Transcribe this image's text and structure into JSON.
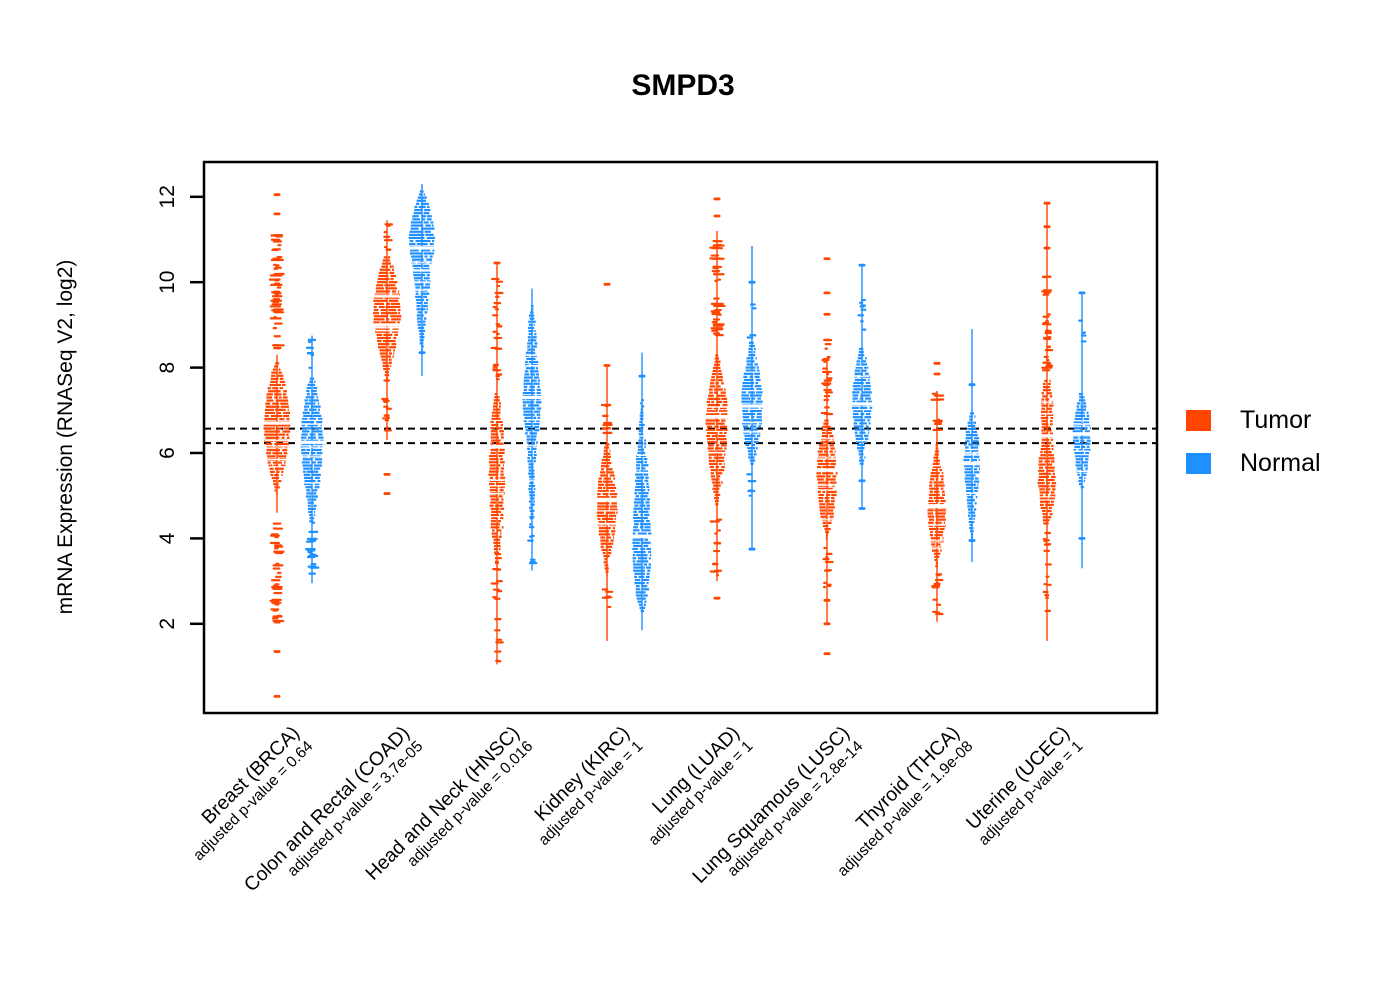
{
  "title": "SMPD3",
  "y_axis": {
    "label": "mRNA Expression (RNASeq V2, log2)",
    "ticks": [
      2,
      4,
      6,
      8,
      10,
      12
    ],
    "range_shown": [
      -0.1,
      12.8
    ]
  },
  "legend": {
    "items": [
      {
        "label": "Tumor",
        "color": "#FF4500"
      },
      {
        "label": "Normal",
        "color": "#1E90FF"
      }
    ]
  },
  "reference_lines": {
    "style": "dashed-black",
    "values": [
      6.57,
      6.23
    ]
  },
  "chart_data": {
    "type": "violin-strip",
    "ylabel": "mRNA Expression (RNASeq V2, log2)",
    "ylim": [
      -0.1,
      12.8
    ],
    "series_colors": {
      "tumor": "#FF4500",
      "normal": "#1E90FF"
    },
    "groups": [
      {
        "label": "Breast (BRCA)",
        "pvalue_label": "adjusted p-value = 0.64",
        "tumor": {
          "median": 6.7,
          "spine": [
            4.6,
            8.3
          ],
          "shape": [
            [
              5.05,
              1
            ],
            [
              5.5,
              6
            ],
            [
              5.9,
              10
            ],
            [
              6.3,
              12
            ],
            [
              6.7,
              13
            ],
            [
              7.1,
              12
            ],
            [
              7.5,
              9
            ],
            [
              7.9,
              5
            ],
            [
              8.15,
              1
            ]
          ],
          "above": {
            "range": [
              8.3,
              11.2
            ],
            "n": 55,
            "w": 5
          },
          "below": {
            "range": [
              2.0,
              4.45
            ],
            "n": 38,
            "w": 4.5
          },
          "dots_above": [
            11.6,
            12.05
          ],
          "dots_below": [
            1.35,
            0.3
          ]
        },
        "normal": {
          "median": 6.25,
          "spine": [
            2.95,
            8.75
          ],
          "shape": [
            [
              4.4,
              2
            ],
            [
              4.9,
              5
            ],
            [
              5.4,
              8
            ],
            [
              5.9,
              10
            ],
            [
              6.3,
              11
            ],
            [
              6.7,
              10
            ],
            [
              7.1,
              8
            ],
            [
              7.5,
              5
            ],
            [
              7.8,
              2
            ]
          ],
          "above": {
            "range": [
              7.85,
              8.7
            ],
            "n": 8,
            "w": 3
          },
          "below": {
            "range": [
              3.0,
              4.4
            ],
            "n": 18,
            "w": 4
          },
          "dots_above": [],
          "dots_below": []
        }
      },
      {
        "label": "Colon and Rectal (COAD)",
        "pvalue_label": "adjusted p-value = 3.7e-05",
        "tumor": {
          "median": 9.0,
          "spine": [
            6.3,
            11.45
          ],
          "shape": [
            [
              7.75,
              1
            ],
            [
              8.1,
              5
            ],
            [
              8.5,
              9
            ],
            [
              8.9,
              12
            ],
            [
              9.2,
              14
            ],
            [
              9.6,
              13
            ],
            [
              10.0,
              10
            ],
            [
              10.3,
              7
            ],
            [
              10.65,
              2
            ]
          ],
          "above": {
            "range": [
              10.7,
              11.45
            ],
            "n": 8,
            "w": 3
          },
          "below": {
            "range": [
              6.45,
              7.75
            ],
            "n": 14,
            "w": 3
          },
          "dots_above": [],
          "dots_below": [
            5.5,
            5.05
          ]
        },
        "normal": {
          "median": 10.8,
          "spine": [
            7.8,
            12.3
          ],
          "shape": [
            [
              8.35,
              1
            ],
            [
              8.8,
              3
            ],
            [
              9.3,
              5
            ],
            [
              9.8,
              7
            ],
            [
              10.3,
              9
            ],
            [
              10.7,
              12
            ],
            [
              11.05,
              13
            ],
            [
              11.4,
              11
            ],
            [
              11.8,
              7
            ],
            [
              12.15,
              2
            ]
          ],
          "above": null,
          "below": null,
          "dots_above": [],
          "dots_below": [
            8.35
          ]
        }
      },
      {
        "label": "Head and Neck (HNSC)",
        "pvalue_label": "adjusted p-value = 0.016",
        "tumor": {
          "median": 6.15,
          "spine": [
            1.05,
            10.45
          ],
          "shape": [
            [
              3.75,
              3
            ],
            [
              4.3,
              6
            ],
            [
              4.9,
              7
            ],
            [
              5.5,
              8
            ],
            [
              6.1,
              7
            ],
            [
              6.7,
              6
            ],
            [
              7.1,
              4
            ],
            [
              7.45,
              2
            ]
          ],
          "above": {
            "range": [
              7.5,
              10.2
            ],
            "n": 24,
            "w": 3
          },
          "below": {
            "range": [
              1.05,
              3.7
            ],
            "n": 20,
            "w": 3
          },
          "dots_above": [
            10.45
          ],
          "dots_below": []
        },
        "normal": {
          "median": 7.3,
          "spine": [
            3.25,
            9.85
          ],
          "shape": [
            [
              4.5,
              2
            ],
            [
              5.2,
              3
            ],
            [
              5.9,
              4
            ],
            [
              6.6,
              7
            ],
            [
              7.0,
              9
            ],
            [
              7.4,
              9
            ],
            [
              7.9,
              7
            ],
            [
              8.5,
              5
            ],
            [
              9.1,
              3
            ],
            [
              9.5,
              1
            ]
          ],
          "above": null,
          "below": {
            "range": [
              3.3,
              4.5
            ],
            "n": 10,
            "w": 2
          },
          "dots_above": [],
          "dots_below": []
        }
      },
      {
        "label": "Kidney (KIRC)",
        "pvalue_label": "adjusted p-value = 1",
        "tumor": {
          "median": 4.9,
          "spine": [
            1.6,
            8.05
          ],
          "shape": [
            [
              3.15,
              1
            ],
            [
              3.6,
              4
            ],
            [
              4.1,
              8
            ],
            [
              4.6,
              10
            ],
            [
              5.1,
              10
            ],
            [
              5.5,
              7
            ],
            [
              5.9,
              4
            ],
            [
              6.2,
              2
            ]
          ],
          "above": {
            "range": [
              6.45,
              7.15
            ],
            "n": 10,
            "w": 4
          },
          "below": {
            "range": [
              2.05,
              2.85
            ],
            "n": 6,
            "w": 3
          },
          "dots_above": [
            8.05,
            9.95
          ],
          "dots_below": []
        },
        "normal": {
          "median": 4.05,
          "spine": [
            1.85,
            8.35
          ],
          "shape": [
            [
              2.3,
              2
            ],
            [
              2.7,
              6
            ],
            [
              3.1,
              8
            ],
            [
              3.6,
              9
            ],
            [
              4.1,
              9
            ],
            [
              4.6,
              8
            ],
            [
              5.1,
              7
            ],
            [
              5.6,
              6
            ],
            [
              6.0,
              5
            ],
            [
              6.4,
              3
            ],
            [
              6.9,
              2
            ],
            [
              7.3,
              1
            ]
          ],
          "above": null,
          "below": null,
          "dots_above": [
            7.8
          ],
          "dots_below": []
        }
      },
      {
        "label": "Lung (LUAD)",
        "pvalue_label": "adjusted p-value = 1",
        "tumor": {
          "median": 6.85,
          "spine": [
            3.0,
            11.2
          ],
          "shape": [
            [
              4.8,
              1
            ],
            [
              5.3,
              5
            ],
            [
              5.8,
              8
            ],
            [
              6.3,
              10
            ],
            [
              6.8,
              11
            ],
            [
              7.2,
              10
            ],
            [
              7.6,
              7
            ],
            [
              8.0,
              4
            ],
            [
              8.35,
              1
            ]
          ],
          "above": {
            "range": [
              8.75,
              11.05
            ],
            "n": 40,
            "w": 5
          },
          "below": {
            "range": [
              3.05,
              4.55
            ],
            "n": 12,
            "w": 4
          },
          "dots_above": [
            11.55,
            11.95
          ],
          "dots_below": [
            2.6
          ]
        },
        "normal": {
          "median": 7.1,
          "spine": [
            3.75,
            10.85
          ],
          "shape": [
            [
              5.75,
              2
            ],
            [
              6.2,
              6
            ],
            [
              6.6,
              9
            ],
            [
              7.0,
              10
            ],
            [
              7.4,
              10
            ],
            [
              7.8,
              8
            ],
            [
              8.2,
              5
            ],
            [
              8.65,
              2
            ]
          ],
          "above": {
            "range": [
              8.7,
              9.6
            ],
            "n": 5,
            "w": 2
          },
          "below": {
            "range": [
              4.95,
              5.65
            ],
            "n": 5,
            "w": 3
          },
          "dots_above": [
            10.0
          ],
          "dots_below": [
            3.75
          ]
        }
      },
      {
        "label": "Lung Squamous (LUSC)",
        "pvalue_label": "adjusted p-value = 2.8e-14",
        "tumor": {
          "median": 5.6,
          "spine": [
            2.0,
            8.2
          ],
          "shape": [
            [
              4.0,
              1
            ],
            [
              4.5,
              6
            ],
            [
              5.0,
              9
            ],
            [
              5.5,
              10
            ],
            [
              6.0,
              9
            ],
            [
              6.4,
              6
            ],
            [
              6.8,
              3
            ]
          ],
          "above": {
            "range": [
              6.9,
              8.75
            ],
            "n": 25,
            "w": 4
          },
          "below": {
            "range": [
              2.85,
              3.85
            ],
            "n": 12,
            "w": 3
          },
          "dots_above": [
            9.25,
            9.75,
            10.55
          ],
          "dots_below": [
            2.55,
            2.0,
            1.3
          ]
        },
        "normal": {
          "median": 7.15,
          "spine": [
            4.7,
            10.4
          ],
          "shape": [
            [
              5.75,
              2
            ],
            [
              6.2,
              5
            ],
            [
              6.7,
              8
            ],
            [
              7.1,
              10
            ],
            [
              7.5,
              9
            ],
            [
              7.9,
              7
            ],
            [
              8.3,
              4
            ],
            [
              8.5,
              2
            ]
          ],
          "above": {
            "range": [
              8.6,
              9.7
            ],
            "n": 8,
            "w": 2
          },
          "below": null,
          "dots_above": [
            10.4
          ],
          "dots_below": [
            5.35,
            4.7
          ]
        }
      },
      {
        "label": "Thyroid (THCA)",
        "pvalue_label": "adjusted p-value = 1.9e-08",
        "tumor": {
          "median": 4.75,
          "spine": [
            2.05,
            7.45
          ],
          "shape": [
            [
              3.35,
              1
            ],
            [
              3.8,
              5
            ],
            [
              4.2,
              8
            ],
            [
              4.7,
              9
            ],
            [
              5.1,
              8
            ],
            [
              5.5,
              6
            ],
            [
              5.9,
              3
            ],
            [
              6.2,
              1
            ]
          ],
          "above": {
            "range": [
              6.5,
              7.45
            ],
            "n": 10,
            "w": 4
          },
          "below": {
            "range": [
              2.05,
              3.25
            ],
            "n": 12,
            "w": 3
          },
          "dots_above": [
            7.85,
            8.1
          ],
          "dots_below": []
        },
        "normal": {
          "median": 5.75,
          "spine": [
            3.45,
            8.9
          ],
          "shape": [
            [
              3.95,
              1
            ],
            [
              4.4,
              3
            ],
            [
              4.9,
              5
            ],
            [
              5.4,
              7
            ],
            [
              5.9,
              8
            ],
            [
              6.3,
              7
            ],
            [
              6.7,
              4
            ],
            [
              6.95,
              2
            ]
          ],
          "above": null,
          "below": null,
          "dots_above": [
            7.6
          ],
          "dots_below": [
            3.95
          ]
        }
      },
      {
        "label": "Uterine (UCEC)",
        "pvalue_label": "adjusted p-value = 1",
        "tumor": {
          "median": 6.4,
          "spine": [
            1.6,
            11.85
          ],
          "shape": [
            [
              4.35,
              3
            ],
            [
              4.8,
              7
            ],
            [
              5.3,
              9
            ],
            [
              5.8,
              8
            ],
            [
              6.2,
              6
            ],
            [
              6.6,
              5
            ],
            [
              7.0,
              6
            ],
            [
              7.4,
              5
            ],
            [
              7.75,
              3
            ]
          ],
          "above": {
            "range": [
              7.8,
              10.3
            ],
            "n": 30,
            "w": 3
          },
          "below": {
            "range": [
              1.9,
              4.3
            ],
            "n": 16,
            "w": 2
          },
          "dots_above": [
            10.8,
            11.3,
            11.85
          ],
          "dots_below": []
        },
        "normal": {
          "median": 6.45,
          "spine": [
            3.3,
            9.75
          ],
          "shape": [
            [
              5.2,
              2
            ],
            [
              5.7,
              6
            ],
            [
              6.1,
              8
            ],
            [
              6.5,
              9
            ],
            [
              6.9,
              7
            ],
            [
              7.2,
              4
            ],
            [
              7.45,
              2
            ]
          ],
          "above": {
            "range": [
              8.6,
              9.15
            ],
            "n": 5,
            "w": 2.5
          },
          "below": null,
          "dots_above": [
            9.75
          ],
          "dots_below": [
            4.0
          ]
        }
      }
    ]
  }
}
